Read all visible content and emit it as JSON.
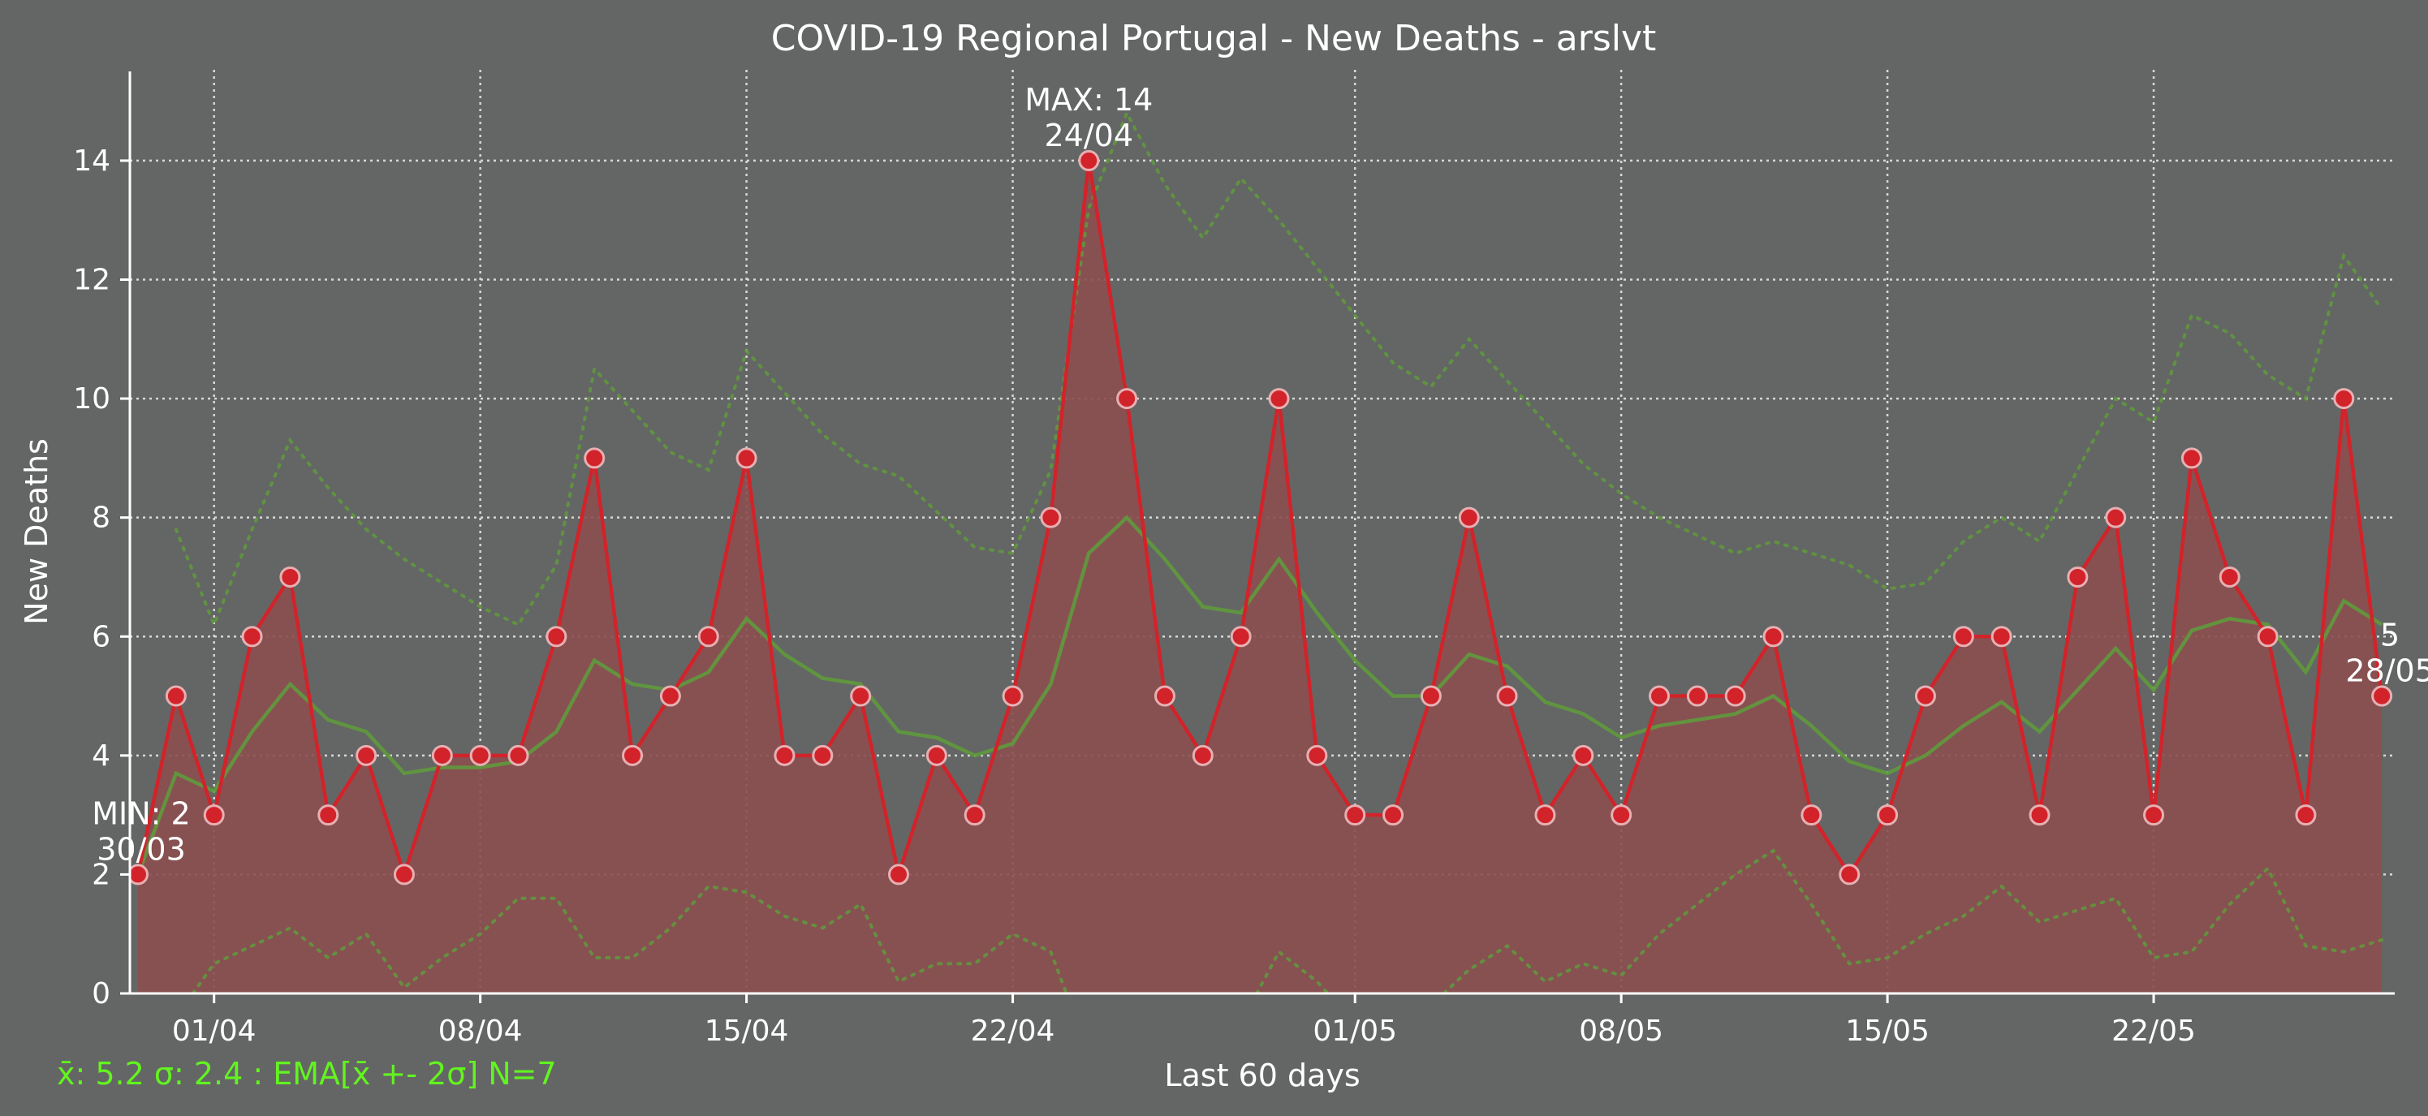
{
  "chart_data": {
    "type": "line",
    "title": "COVID-19 Regional Portugal - New Deaths - arslvt",
    "xlabel": "Last 60 days",
    "ylabel": "New Deaths",
    "ylim": [
      0,
      15.5
    ],
    "yticks": [
      0,
      2,
      4,
      6,
      8,
      10,
      12,
      14
    ],
    "xtick_labels": [
      "01/04",
      "08/04",
      "15/04",
      "22/04",
      "01/05",
      "08/05",
      "15/05",
      "22/05"
    ],
    "grid": true,
    "colors": {
      "background": "#646665",
      "series": "#d2232a",
      "area": "#8b4f50",
      "ema": "#5f9a3c",
      "stats_text": "#62f41f"
    },
    "x": [
      "30/03",
      "31/03",
      "01/04",
      "02/04",
      "03/04",
      "04/04",
      "05/04",
      "06/04",
      "07/04",
      "08/04",
      "09/04",
      "10/04",
      "11/04",
      "12/04",
      "13/04",
      "14/04",
      "15/04",
      "16/04",
      "17/04",
      "18/04",
      "19/04",
      "20/04",
      "21/04",
      "22/04",
      "23/04",
      "24/04",
      "25/04",
      "26/04",
      "27/04",
      "28/04",
      "29/04",
      "30/04",
      "01/05",
      "02/05",
      "03/05",
      "04/05",
      "05/05",
      "06/05",
      "07/05",
      "08/05",
      "09/05",
      "10/05",
      "11/05",
      "12/05",
      "13/05",
      "14/05",
      "15/05",
      "16/05",
      "17/05",
      "18/05",
      "19/05",
      "20/05",
      "21/05",
      "22/05",
      "23/05",
      "24/05",
      "25/05",
      "26/05",
      "27/05",
      "28/05"
    ],
    "series": [
      {
        "values": [
          2,
          5,
          3,
          6,
          7,
          3,
          4,
          2,
          4,
          4,
          4,
          6,
          9,
          4,
          5,
          6,
          9,
          4,
          4,
          5,
          2,
          4,
          3,
          5,
          8,
          14,
          10,
          5,
          4,
          6,
          10,
          4,
          3,
          3,
          5,
          8,
          5,
          3,
          4,
          3,
          5,
          5,
          5,
          6,
          3,
          2,
          3,
          5,
          6,
          6,
          3,
          7,
          8,
          3,
          9,
          7,
          6,
          3,
          10,
          5
        ]
      },
      {
        "values": [
          2.0,
          3.7,
          3.4,
          4.4,
          5.2,
          4.6,
          4.4,
          3.7,
          3.8,
          3.8,
          3.9,
          4.4,
          5.6,
          5.2,
          5.1,
          5.4,
          6.3,
          5.7,
          5.3,
          5.2,
          4.4,
          4.3,
          4.0,
          4.2,
          5.2,
          7.4,
          8.0,
          7.3,
          6.5,
          6.4,
          7.3,
          6.4,
          5.6,
          5.0,
          5.0,
          5.7,
          5.5,
          4.9,
          4.7,
          4.3,
          4.5,
          4.6,
          4.7,
          5.0,
          4.5,
          3.9,
          3.7,
          4.0,
          4.5,
          4.9,
          4.4,
          5.1,
          5.8,
          5.1,
          6.1,
          6.3,
          6.2,
          5.4,
          6.6,
          6.2
        ]
      },
      {
        "values": [
          null,
          7.8,
          6.2,
          7.8,
          9.3,
          8.5,
          7.8,
          7.3,
          6.9,
          6.5,
          6.2,
          7.2,
          10.5,
          9.8,
          9.1,
          8.8,
          10.8,
          10.1,
          9.4,
          8.9,
          8.7,
          8.1,
          7.5,
          7.4,
          8.8,
          13.2,
          14.8,
          13.6,
          12.7,
          13.7,
          13.0,
          12.2,
          11.4,
          10.6,
          10.2,
          11.0,
          10.3,
          9.6,
          8.9,
          8.4,
          8.0,
          7.7,
          7.4,
          7.6,
          7.4,
          7.2,
          6.8,
          6.9,
          7.6,
          8.0,
          7.6,
          8.8,
          10.0,
          9.6,
          11.4,
          11.1,
          10.4,
          10.0,
          12.4,
          11.5
        ]
      },
      {
        "values": [
          null,
          -0.4,
          0.5,
          0.8,
          1.1,
          0.6,
          1.0,
          0.1,
          0.6,
          1.0,
          1.6,
          1.6,
          0.6,
          0.6,
          1.1,
          1.8,
          1.7,
          1.3,
          1.1,
          1.5,
          0.2,
          0.5,
          0.5,
          1.0,
          0.7,
          -1.0,
          -0.5,
          -0.8,
          -0.5,
          -0.5,
          0.7,
          0.2,
          -0.5,
          -0.6,
          -0.2,
          0.4,
          0.8,
          0.2,
          0.5,
          0.3,
          1.0,
          1.5,
          2.0,
          2.4,
          1.5,
          0.5,
          0.6,
          1.0,
          1.3,
          1.8,
          1.2,
          1.4,
          1.6,
          0.6,
          0.7,
          1.5,
          2.1,
          0.8,
          0.7,
          0.9
        ]
      }
    ],
    "annotations": [
      {
        "label": "MIN: 2",
        "date": "30/03"
      },
      {
        "label": "MAX: 14",
        "date": "24/04"
      },
      {
        "label": "5",
        "date": "28/05"
      }
    ],
    "stats_text": "x̄: 5.2 σ: 2.4 : EMA[x̄ +- 2σ] N=7"
  }
}
